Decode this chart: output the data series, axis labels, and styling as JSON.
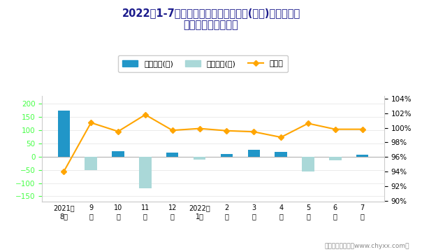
{
  "title_line1": "2022年1-7月上汽通用旗下最畅销轿车(威朗)近一年库存",
  "title_line2": "情况及产销率统计图",
  "categories": [
    "2021年\n8月",
    "9\n月",
    "10\n月",
    "11\n月",
    "12\n月",
    "2022年\n1月",
    "2\n月",
    "3\n月",
    "4\n月",
    "5\n月",
    "6\n月",
    "7\n月"
  ],
  "jiiya_values": [
    175,
    0,
    20,
    0,
    15,
    0,
    10,
    27,
    18,
    0,
    0,
    7
  ],
  "qingcang_values": [
    0,
    -50,
    0,
    -120,
    0,
    -10,
    0,
    0,
    0,
    -55,
    -15,
    0
  ],
  "rate_values": [
    0.94,
    1.007,
    0.995,
    1.018,
    0.9965,
    0.999,
    0.996,
    0.9945,
    0.987,
    1.006,
    0.998,
    0.998
  ],
  "jiiya_color": "#2196C8",
  "qingcang_color": "#AAD8D8",
  "rate_color": "#FFA500",
  "title_color": "#1a1a8c",
  "left_ytick_color": "#44FF44",
  "left_ylim": [
    -170,
    230
  ],
  "right_ylim": [
    0.8986,
    1.044
  ],
  "right_yticks": [
    0.9,
    0.92,
    0.94,
    0.96,
    0.98,
    1.0,
    1.02,
    1.04
  ],
  "left_yticks": [
    -150,
    -100,
    -50,
    0,
    50,
    100,
    150,
    200
  ],
  "footer": "制图：智研咨询（www.chyxx.com）",
  "legend_labels": [
    "积压库存(辆)",
    "清仓库存(辆)",
    "产销率"
  ],
  "bg_color": "#FFFFFF"
}
